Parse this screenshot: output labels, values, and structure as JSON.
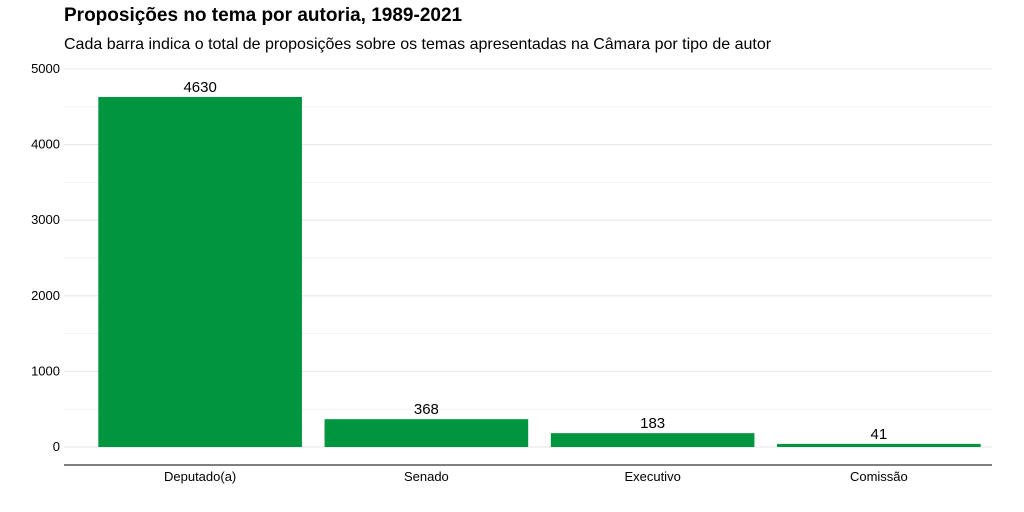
{
  "chart_data": {
    "type": "bar",
    "title": "Proposições no tema por autoria, 1989-2021",
    "subtitle": "Cada barra indica o total de proposições sobre os temas apresentadas na Câmara por tipo de autor",
    "xlabel": "",
    "ylabel": "",
    "categories": [
      "Deputado(a)",
      "Senado",
      "Executivo",
      "Comissão"
    ],
    "values": [
      4630,
      368,
      183,
      41
    ],
    "data_labels": [
      "4630",
      "368",
      "183",
      "41"
    ],
    "ylim": [
      0,
      5000
    ],
    "y_ticks": [
      "0",
      "1000",
      "2000",
      "3000",
      "4000",
      "5000"
    ],
    "grid": true,
    "legend": "none",
    "bar_color": "#009640"
  }
}
